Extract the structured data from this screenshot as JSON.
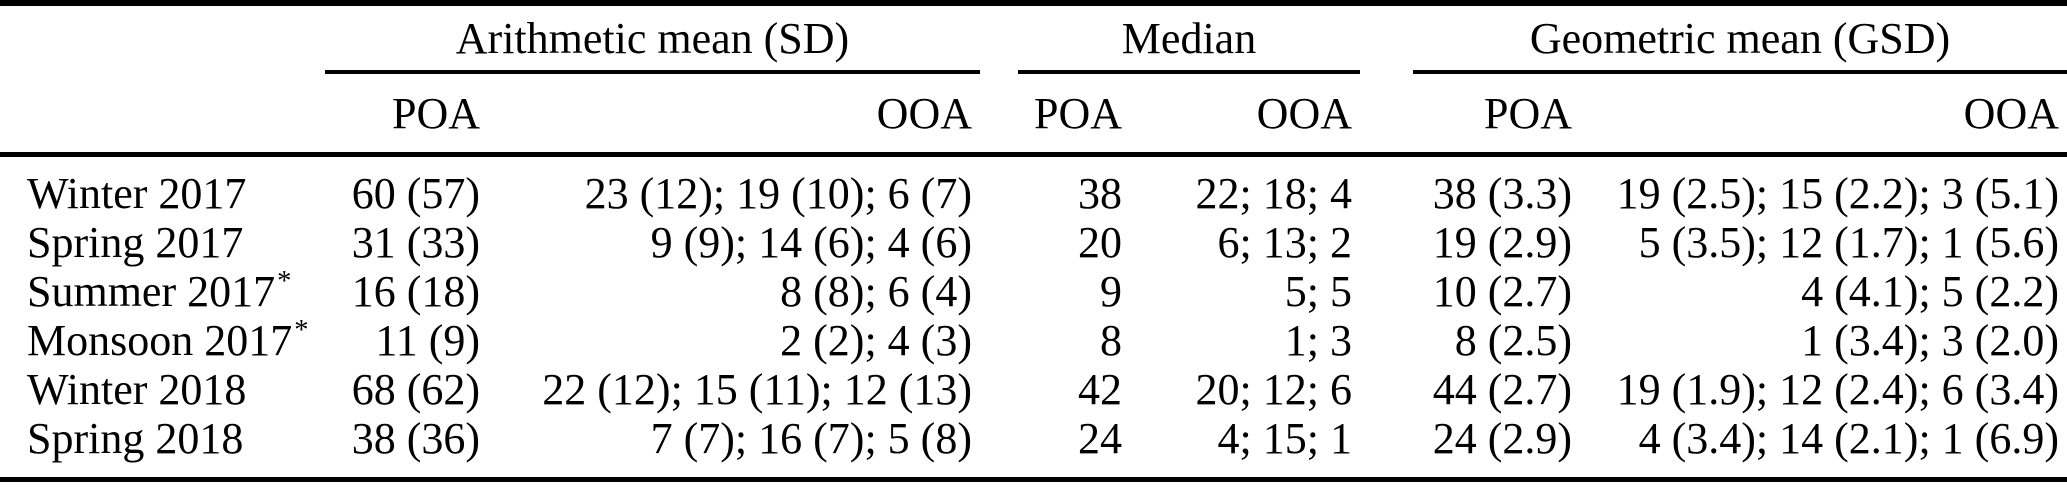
{
  "table": {
    "groups": [
      {
        "label": "Arithmetic mean (SD)",
        "sub": [
          "POA",
          "OOA"
        ]
      },
      {
        "label": "Median",
        "sub": [
          "POA",
          "OOA"
        ]
      },
      {
        "label": "Geometric mean (GSD)",
        "sub": [
          "POA",
          "OOA"
        ]
      }
    ],
    "rows": [
      {
        "label": "Winter 2017",
        "flag": "",
        "am_poa": "60 (57)",
        "am_ooa": "23 (12); 19 (10); 6 (7)",
        "med_poa": "38",
        "med_ooa": "22; 18; 4",
        "gm_poa": "38 (3.3)",
        "gm_ooa": "19 (2.5); 15 (2.2); 3 (5.1)"
      },
      {
        "label": "Spring 2017",
        "flag": "",
        "am_poa": "31 (33)",
        "am_ooa": "9 (9); 14 (6); 4 (6)",
        "med_poa": "20",
        "med_ooa": "6; 13; 2",
        "gm_poa": "19 (2.9)",
        "gm_ooa": "5 (3.5); 12 (1.7); 1 (5.6)"
      },
      {
        "label": "Summer 2017",
        "flag": "*",
        "am_poa": "16 (18)",
        "am_ooa": "8 (8); 6 (4)",
        "med_poa": "9",
        "med_ooa": "5; 5",
        "gm_poa": "10 (2.7)",
        "gm_ooa": "4 (4.1); 5 (2.2)"
      },
      {
        "label": "Monsoon 2017",
        "flag": "*",
        "am_poa": "11 (9)",
        "am_ooa": "2 (2); 4 (3)",
        "med_poa": "8",
        "med_ooa": "1; 3",
        "gm_poa": "8 (2.5)",
        "gm_ooa": "1 (3.4); 3 (2.0)"
      },
      {
        "label": "Winter 2018",
        "flag": "",
        "am_poa": "68 (62)",
        "am_ooa": "22 (12); 15 (11); 12 (13)",
        "med_poa": "42",
        "med_ooa": "20; 12; 6",
        "gm_poa": "44 (2.7)",
        "gm_ooa": "19 (1.9); 12 (2.4); 6 (3.4)"
      },
      {
        "label": "Spring 2018",
        "flag": "",
        "am_poa": "38 (36)",
        "am_ooa": "7 (7); 16 (7); 5 (8)",
        "med_poa": "24",
        "med_ooa": "4; 15; 1",
        "gm_poa": "24 (2.9)",
        "gm_ooa": "4 (3.4); 14 (2.1); 1 (6.9)"
      }
    ]
  }
}
